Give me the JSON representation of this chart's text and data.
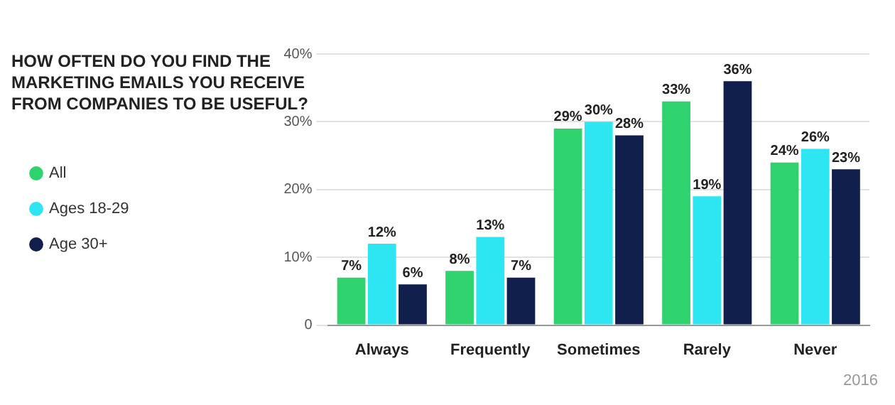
{
  "chart_data": {
    "type": "bar",
    "title": "HOW OFTEN DO YOU FIND THE MARKETING EMAILS YOU RECEIVE FROM COMPANIES TO BE USEFUL?",
    "categories": [
      "Always",
      "Frequently",
      "Sometimes",
      "Rarely",
      "Never"
    ],
    "series": [
      {
        "name": "All",
        "color": "#2fd36e",
        "values": [
          7,
          8,
          29,
          33,
          24
        ],
        "value_labels": [
          "7%",
          "8%",
          "29%",
          "33%",
          "24%"
        ]
      },
      {
        "name": "Ages 18-29",
        "color": "#2ee6f2",
        "values": [
          12,
          13,
          30,
          19,
          26
        ],
        "value_labels": [
          "12%",
          "13%",
          "30%",
          "19%",
          "26%"
        ]
      },
      {
        "name": "Age 30+",
        "color": "#101f4c",
        "values": [
          6,
          7,
          28,
          36,
          23
        ],
        "value_labels": [
          "6%",
          "7%",
          "28%",
          "36%",
          "23%"
        ]
      }
    ],
    "ylim": [
      0,
      40
    ],
    "yticks": [
      {
        "value": 0,
        "label": "0"
      },
      {
        "value": 10,
        "label": "10%"
      },
      {
        "value": 20,
        "label": "20%"
      },
      {
        "value": 30,
        "label": "30%"
      },
      {
        "value": 40,
        "label": "40%"
      }
    ],
    "grid": "y",
    "legend": "left",
    "annotations": [
      "2016"
    ]
  }
}
